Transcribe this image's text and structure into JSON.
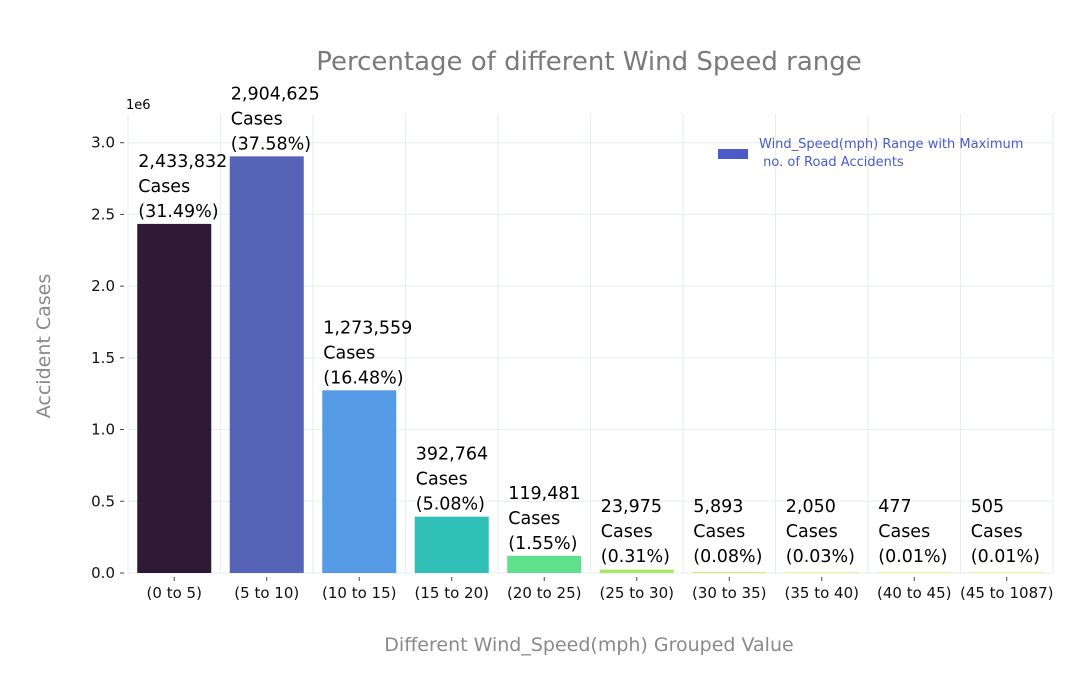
{
  "chart_data": {
    "type": "bar",
    "title": "Percentage of different Wind Speed range",
    "xlabel": "Different Wind_Speed(mph) Grouped Value",
    "ylabel": "Accident Cases",
    "y_offset_label": "1e6",
    "ylim": [
      0,
      3200000
    ],
    "yticks": [
      0,
      500000,
      1000000,
      1500000,
      2000000,
      2500000,
      3000000
    ],
    "ytick_labels": [
      "0.0",
      "0.5",
      "1.0",
      "1.5",
      "2.0",
      "2.5",
      "3.0"
    ],
    "grid": true,
    "categories": [
      "(0 to 5)",
      "(5 to 10)",
      "(10 to 15)",
      "(15 to 20)",
      "(20 to 25)",
      "(25 to 30)",
      "(30 to 35)",
      "(35 to 40)",
      "(40 to 45)",
      "(45 to 1087)"
    ],
    "values": [
      2433832,
      2904625,
      1273559,
      392764,
      119481,
      23975,
      5893,
      2050,
      477,
      505
    ],
    "colors": [
      "#2e1a34",
      "#5564b7",
      "#559ae5",
      "#2fbfb7",
      "#5ee08c",
      "#a7ea5f",
      "#c9ec57",
      "#d8ee52",
      "#e1ef4f",
      "#e6f04c"
    ],
    "data_labels": [
      [
        "2,433,832",
        "Cases",
        "(31.49%)"
      ],
      [
        "2,904,625",
        "Cases",
        "(37.58%)"
      ],
      [
        "1,273,559",
        "Cases",
        "(16.48%)"
      ],
      [
        "392,764",
        "Cases",
        "(5.08%)"
      ],
      [
        "119,481",
        "Cases",
        "(1.55%)"
      ],
      [
        "23,975",
        "Cases",
        "(0.31%)"
      ],
      [
        "5,893",
        "Cases",
        "(0.08%)"
      ],
      [
        "2,050",
        "Cases",
        "(0.03%)"
      ],
      [
        "477",
        "Cases",
        "(0.01%)"
      ],
      [
        "505",
        "Cases",
        "(0.01%)"
      ]
    ],
    "legend": {
      "placement": "top-right",
      "label_lines": [
        "Wind_Speed(mph) Range with Maximum",
        " no. of Road Accidents"
      ],
      "color": "#4a5cc9"
    }
  }
}
